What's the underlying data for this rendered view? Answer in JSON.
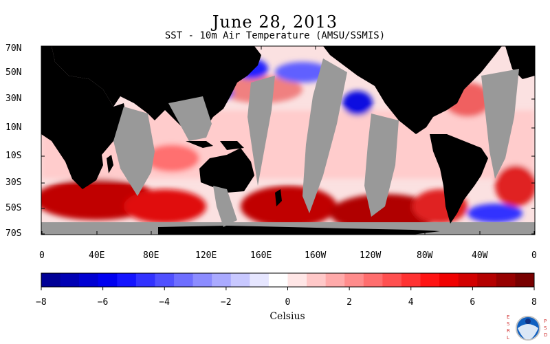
{
  "title": "June 28, 2013",
  "subtitle": "SST - 10m Air Temperature (AMSU/SSMIS)",
  "lat_labels": [
    "70N",
    "50N",
    "30N",
    "10N",
    "10S",
    "30S",
    "50S",
    "70S"
  ],
  "lon_labels": [
    "0",
    "40E",
    "80E",
    "120E",
    "160E",
    "160W",
    "120W",
    "80W",
    "40W",
    "0"
  ],
  "colorbar": {
    "label": "Celsius",
    "ticks": [
      "−8",
      "−6",
      "−4",
      "−2",
      "0",
      "2",
      "4",
      "6",
      "8"
    ],
    "colors": [
      "#000096",
      "#0000b4",
      "#0000d2",
      "#0000f0",
      "#1414ff",
      "#3232ff",
      "#5050ff",
      "#6e6eff",
      "#8c8cff",
      "#aaaaff",
      "#c8c8ff",
      "#e6e6ff",
      "#ffffff",
      "#ffe6e6",
      "#ffc8c8",
      "#ffaaaa",
      "#ff8c8c",
      "#ff6e6e",
      "#ff5050",
      "#ff3232",
      "#ff1414",
      "#f00000",
      "#d20000",
      "#b40000",
      "#960000",
      "#780000"
    ]
  },
  "colors": {
    "land": "#000000",
    "missing": "#999999"
  },
  "logo_text": {
    "left": "ESRL",
    "right": "PSD",
    "center": "NOAA"
  }
}
